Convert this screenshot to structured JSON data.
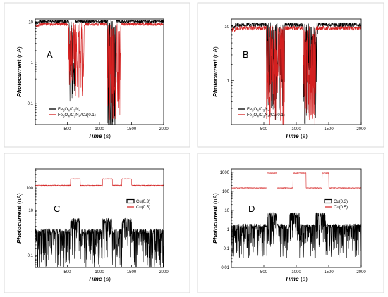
{
  "colors": {
    "series_1": "#000000",
    "series_2": "#d42020",
    "panel_border": "#d9d9d9"
  },
  "chart_data": [
    {
      "type": "line",
      "panel_label": "A",
      "xlabel": "Time",
      "xunit": "(s)",
      "ylabel": "Photocurrent",
      "yunit": "(nA)",
      "xlim": [
        0,
        2000
      ],
      "ylim": [
        0.03,
        12
      ],
      "yscale": "log",
      "xticks": [
        500,
        1000,
        1500,
        2000
      ],
      "yticks": [
        0.1,
        1,
        10
      ],
      "ytick_labels": [
        "0.1",
        "1",
        "10"
      ],
      "legend_position": "bottom-left",
      "series": [
        {
          "name_parts": [
            "Fe",
            "3",
            "O",
            "4",
            "/C",
            "3",
            "N",
            "4",
            ""
          ],
          "color": "#000000",
          "baseline": 10.5,
          "dips": [
            {
              "x": [
                530,
                620
              ],
              "y": 0.5
            },
            {
              "x": [
                1130,
                1260
              ],
              "y": 0.05
            }
          ]
        },
        {
          "name_parts": [
            "Fe",
            "3",
            "O",
            "4",
            "/C",
            "3",
            "N",
            "4",
            "/Cu(0.1)"
          ],
          "color": "#d42020",
          "baseline": 9.0,
          "dips": [
            {
              "x": [
                520,
                760
              ],
              "y": 0.7
            },
            {
              "x": [
                1120,
                1330
              ],
              "y": 0.2
            }
          ]
        }
      ]
    },
    {
      "type": "line",
      "panel_label": "B",
      "xlabel": "Time",
      "xunit": "(s)",
      "ylabel": "Photocurrent",
      "yunit": "(nA)",
      "xlim": [
        0,
        2000
      ],
      "ylim": [
        0.15,
        14
      ],
      "yscale": "log",
      "xticks": [
        500,
        1000,
        1500,
        2000
      ],
      "yticks": [
        1,
        10
      ],
      "ytick_labels": [
        "1",
        "10"
      ],
      "legend_position": "bottom-center",
      "series": [
        {
          "name_parts": [
            "Fe",
            "3",
            "O",
            "4",
            "/C",
            "3",
            "N",
            "4",
            ""
          ],
          "color": "#000000",
          "baseline": 11.0,
          "dips": [
            {
              "x": [
                540,
                820
              ],
              "y": 0.9
            },
            {
              "x": [
                1110,
                1330
              ],
              "y": 0.8
            }
          ]
        },
        {
          "name_parts": [
            "Fe",
            "3",
            "O",
            "4",
            "/C",
            "3",
            "N",
            "4",
            "/Cu(0.1)"
          ],
          "color": "#d42020",
          "baseline": 9.5,
          "dips": [
            {
              "x": [
                540,
                820
              ],
              "y": 0.7
            },
            {
              "x": [
                1110,
                1300
              ],
              "y": 0.5
            }
          ]
        }
      ]
    },
    {
      "type": "line",
      "panel_label": "C",
      "xlabel": "Time",
      "xunit": "(s)",
      "ylabel": "Photocurrent",
      "yunit": "(nA)",
      "xlim": [
        0,
        2000
      ],
      "ylim": [
        0.03,
        700
      ],
      "yscale": "log",
      "xticks": [
        500,
        1000,
        1500,
        2000
      ],
      "yticks": [
        0.1,
        1,
        10,
        100
      ],
      "ytick_labels": [
        "0.1",
        "1",
        "10",
        "100"
      ],
      "legend_position": "top-right",
      "series": [
        {
          "name": "Cu(0.3)",
          "color": "#000000",
          "baseline": 1.2,
          "on_level": 3.5,
          "on_intervals": [
            [
              550,
              700
            ],
            [
              1050,
              1200
            ],
            [
              1350,
              1500
            ]
          ]
        },
        {
          "name": "Cu(0.5)",
          "color": "#d42020",
          "baseline": 130,
          "on_level": 250,
          "on_intervals": [
            [
              550,
              700
            ],
            [
              1050,
              1200
            ],
            [
              1350,
              1500
            ]
          ]
        }
      ]
    },
    {
      "type": "line",
      "panel_label": "D",
      "xlabel": "Time",
      "xunit": "(s)",
      "ylabel": "Photocurrent",
      "yunit": "(nA)",
      "xlim": [
        0,
        2000
      ],
      "ylim": [
        0.01,
        1500
      ],
      "yscale": "log",
      "xticks": [
        500,
        1000,
        1500,
        2000
      ],
      "yticks": [
        0.01,
        0.1,
        1,
        10,
        100,
        1000
      ],
      "ytick_labels": [
        "0.01",
        "0.1",
        "1",
        "10",
        "100",
        "1000"
      ],
      "legend_position": "top-right",
      "series": [
        {
          "name": "Cu(0.3)",
          "color": "#000000",
          "baseline": 1.5,
          "on_level": 6,
          "on_intervals": [
            [
              550,
              700
            ],
            [
              900,
              1050
            ],
            [
              1300,
              1450
            ]
          ]
        },
        {
          "name": "Cu(0.5)",
          "color": "#d42020",
          "baseline": 150,
          "on_level": 900,
          "on_intervals": [
            [
              550,
              700
            ],
            [
              950,
              1150
            ],
            [
              1400,
              1500
            ]
          ]
        }
      ]
    }
  ]
}
